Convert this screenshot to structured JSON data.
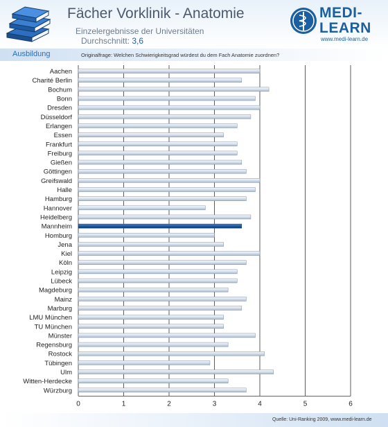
{
  "header": {
    "title": "Fächer Vorklinik - Anatomie",
    "subtitle": "Einzelergebnisse der Universitäten",
    "average_label": "Durchschnitt:",
    "average_value": "3,6",
    "section": "Ausbildung",
    "question": "Originalfrage: Welchen Schwierigkeitsgrad würdest du dem Fach Anatomie zuordnen?"
  },
  "logo": {
    "line1": "MEDI-",
    "line2": "LEARN",
    "url": "www.medi-learn.de"
  },
  "footer": {
    "source": "Quelle: Uni-Ranking 2009, www.medi-learn.de"
  },
  "colors": {
    "bar_normal": "#dfe7f1",
    "bar_highlight": "#1f5a9e",
    "brand": "#1b5fa0"
  },
  "chart_data": {
    "type": "bar",
    "orientation": "horizontal",
    "title": "",
    "xlabel": "",
    "ylabel": "",
    "xlim": [
      0,
      6
    ],
    "xticks": [
      0,
      1,
      2,
      3,
      4,
      5,
      6
    ],
    "grid": true,
    "highlight": "Mannheim",
    "categories": [
      "Aachen",
      "Charité Berlin",
      "Bochum",
      "Bonn",
      "Dresden",
      "Düsseldorf",
      "Erlangen",
      "Essen",
      "Frankfurt",
      "Freiburg",
      "Gießen",
      "Göttingen",
      "Greifswald",
      "Halle",
      "Hamburg",
      "Hannover",
      "Heidelberg",
      "Mannheim",
      "Homburg",
      "Jena",
      "Kiel",
      "Köln",
      "Leipzig",
      "Lübeck",
      "Magdeburg",
      "Mainz",
      "Marburg",
      "LMU München",
      "TU München",
      "Münster",
      "Regensburg",
      "Rostock",
      "Tübingen",
      "Ulm",
      "Witten-Herdecke",
      "Würzburg"
    ],
    "values": [
      4.0,
      3.6,
      4.2,
      3.9,
      4.0,
      3.8,
      3.5,
      3.2,
      3.5,
      3.5,
      3.6,
      3.7,
      4.0,
      3.9,
      3.7,
      2.8,
      3.8,
      3.6,
      3.0,
      3.2,
      4.0,
      3.7,
      3.5,
      3.5,
      3.3,
      3.7,
      3.6,
      3.2,
      3.2,
      3.9,
      3.3,
      4.1,
      2.9,
      4.3,
      3.3,
      3.7
    ]
  }
}
